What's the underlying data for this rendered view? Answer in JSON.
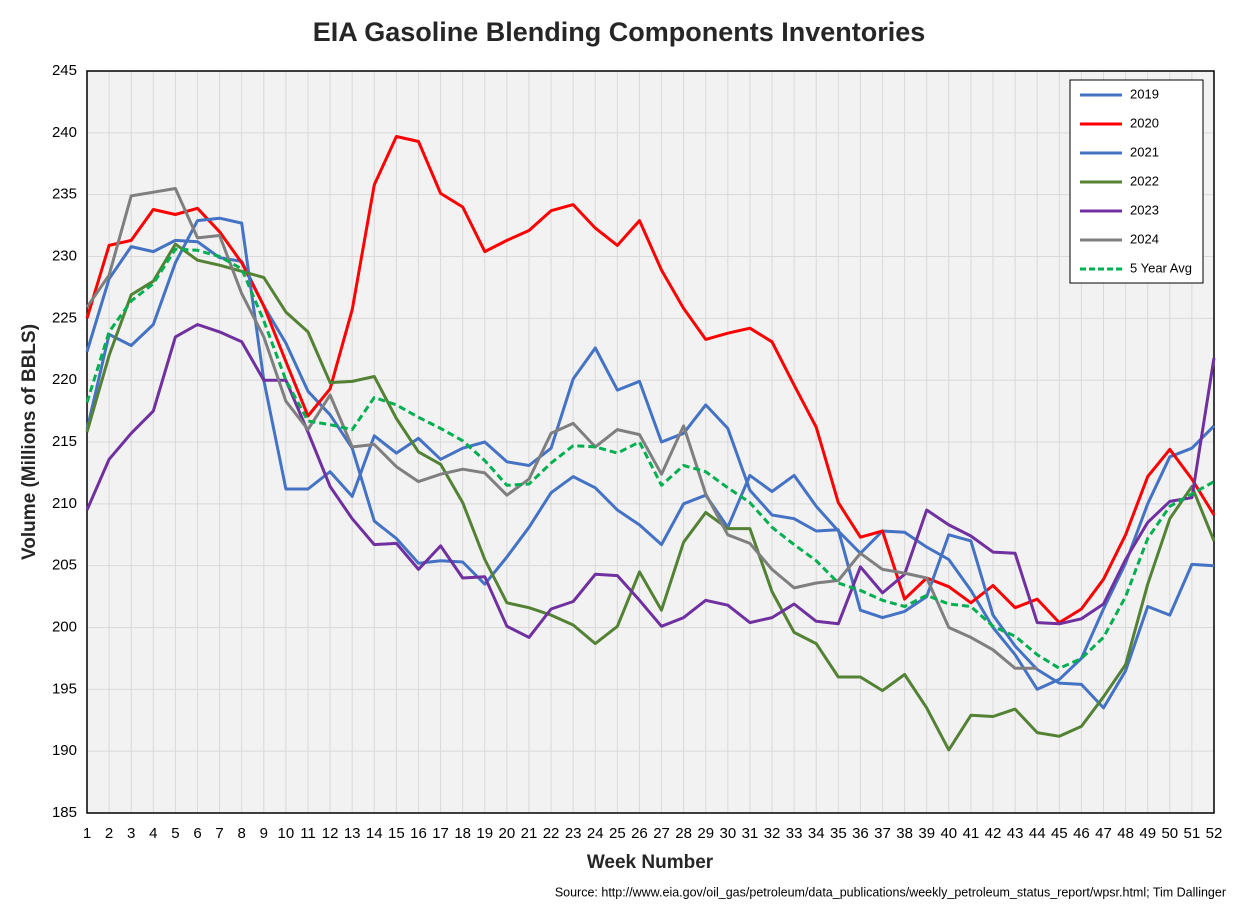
{
  "chart_data": {
    "type": "line",
    "title": "EIA Gasoline Blending Components Inventories",
    "xlabel": "Week Number",
    "ylabel": "Volume (Millions of BBLS)",
    "source": "Source: http://www.eia.gov/oil_gas/petroleum/data_publications/weekly_petroleum_status_report/wpsr.html; Tim Dallinger",
    "x": [
      1,
      2,
      3,
      4,
      5,
      6,
      7,
      8,
      9,
      10,
      11,
      12,
      13,
      14,
      15,
      16,
      17,
      18,
      19,
      20,
      21,
      22,
      23,
      24,
      25,
      26,
      27,
      28,
      29,
      30,
      31,
      32,
      33,
      34,
      35,
      36,
      37,
      38,
      39,
      40,
      41,
      42,
      43,
      44,
      45,
      46,
      47,
      48,
      49,
      50,
      51,
      52
    ],
    "xlim": [
      1,
      52
    ],
    "xticks": [
      1,
      2,
      3,
      4,
      5,
      6,
      7,
      8,
      9,
      10,
      11,
      12,
      13,
      14,
      15,
      16,
      17,
      18,
      19,
      20,
      21,
      22,
      23,
      24,
      25,
      26,
      27,
      28,
      29,
      30,
      31,
      32,
      33,
      34,
      35,
      36,
      37,
      38,
      39,
      40,
      41,
      42,
      43,
      44,
      45,
      46,
      47,
      48,
      49,
      50,
      51,
      52
    ],
    "ylim": [
      185,
      245
    ],
    "yticks": [
      185,
      190,
      195,
      200,
      205,
      210,
      215,
      220,
      225,
      230,
      235,
      240,
      245
    ],
    "grid": true,
    "legend": "upper right",
    "series": [
      {
        "name": "2019",
        "color": "#4472c4",
        "values": [
          222.3,
          228.2,
          230.8,
          230.4,
          231.3,
          231.2,
          229.9,
          229.6,
          226.0,
          223.0,
          219.1,
          217.2,
          214.5,
          208.6,
          207.2,
          205.2,
          205.4,
          205.3,
          203.5,
          205.7,
          208.1,
          210.9,
          212.2,
          211.3,
          209.5,
          208.3,
          206.7,
          210.0,
          210.7,
          208.1,
          212.3,
          211.0,
          212.3,
          209.8,
          207.8,
          206.0,
          207.8,
          207.7,
          206.5,
          205.5,
          203.0,
          200.0,
          197.8,
          195.0,
          195.8,
          197.5,
          201.5,
          205.2,
          210.0,
          213.8,
          214.5,
          216.3
        ]
      },
      {
        "name": "2020",
        "color": "#ff0000",
        "values": [
          225.0,
          230.9,
          231.3,
          233.8,
          233.4,
          233.9,
          232.0,
          229.5,
          226.0,
          221.5,
          217.1,
          219.3,
          225.7,
          235.8,
          239.7,
          239.3,
          235.1,
          234.0,
          230.4,
          231.3,
          232.1,
          233.7,
          234.2,
          232.3,
          230.9,
          232.9,
          228.9,
          225.8,
          223.3,
          223.8,
          224.2,
          223.1,
          219.6,
          216.2,
          210.1,
          207.3,
          207.8,
          202.3,
          204.0,
          203.3,
          202.0,
          203.4,
          201.6,
          202.3,
          200.4,
          201.5,
          203.9,
          207.5,
          212.2,
          214.4,
          212.0,
          209.1
        ]
      },
      {
        "name": "2021",
        "color": "#4472c4",
        "values": [
          216.0,
          223.7,
          222.8,
          224.5,
          229.5,
          232.9,
          233.1,
          232.7,
          220.0,
          211.2,
          211.2,
          212.6,
          210.6,
          215.5,
          214.1,
          215.3,
          213.6,
          214.5,
          215.0,
          213.4,
          213.1,
          214.5,
          220.1,
          222.6,
          219.2,
          219.9,
          215.0,
          215.7,
          218.0,
          216.1,
          211.1,
          209.1,
          208.8,
          207.8,
          207.9,
          201.4,
          200.8,
          201.3,
          202.5,
          207.5,
          207.0,
          201.0,
          198.5,
          196.6,
          195.5,
          195.4,
          193.5,
          196.5,
          201.7,
          201.0,
          205.1,
          205.0
        ]
      },
      {
        "name": "2022",
        "color": "#548235",
        "values": [
          215.8,
          222.0,
          226.9,
          228.0,
          231.0,
          229.7,
          229.3,
          228.8,
          228.3,
          225.5,
          223.9,
          219.8,
          219.9,
          220.3,
          216.9,
          214.2,
          213.2,
          210.1,
          205.5,
          202.0,
          201.6,
          201.0,
          200.2,
          198.7,
          200.1,
          204.5,
          201.4,
          206.9,
          209.3,
          208.0,
          208.0,
          202.9,
          199.6,
          198.7,
          196.0,
          196.0,
          194.9,
          196.2,
          193.5,
          190.1,
          192.9,
          192.8,
          193.4,
          191.5,
          191.2,
          192.0,
          194.4,
          197.0,
          203.5,
          208.8,
          211.4,
          207.0
        ]
      },
      {
        "name": "2023",
        "color": "#7030a0",
        "values": [
          209.5,
          213.6,
          215.7,
          217.5,
          223.5,
          224.5,
          223.9,
          223.1,
          220.0,
          220.0,
          215.8,
          211.4,
          208.8,
          206.7,
          206.8,
          204.7,
          206.6,
          204.0,
          204.1,
          200.1,
          199.2,
          201.5,
          202.1,
          204.3,
          204.2,
          202.2,
          200.1,
          200.8,
          202.2,
          201.8,
          200.4,
          200.8,
          201.9,
          200.5,
          200.3,
          204.9,
          202.8,
          204.3,
          209.5,
          208.3,
          207.4,
          206.1,
          206.0,
          200.4,
          200.3,
          200.7,
          201.9,
          205.5,
          208.5,
          210.2,
          210.5,
          221.8
        ]
      },
      {
        "name": "2024",
        "color": "#7f7f7f",
        "values": [
          225.9,
          228.5,
          234.9,
          235.2,
          235.5,
          231.5,
          231.7,
          227.0,
          223.5,
          218.3,
          216.0,
          218.8,
          214.6,
          214.8,
          213.0,
          211.8,
          212.4,
          212.8,
          212.5,
          210.7,
          212.0,
          215.7,
          216.5,
          214.6,
          216.0,
          215.6,
          212.4,
          216.3,
          210.8,
          207.5,
          206.8,
          204.7,
          203.2,
          203.6,
          203.8,
          206.0,
          204.7,
          204.4,
          204.0,
          200.0,
          199.2,
          198.2,
          196.7,
          196.7,
          null,
          null,
          null,
          null,
          null,
          null,
          null,
          null
        ]
      },
      {
        "name": "5 Year Avg",
        "color": "#00b050",
        "dash": true,
        "values": [
          218.2,
          223.9,
          226.4,
          227.8,
          230.6,
          230.5,
          230.0,
          229.0,
          224.8,
          220.0,
          216.7,
          216.4,
          216.0,
          218.6,
          218.0,
          217.0,
          216.1,
          215.1,
          213.5,
          211.5,
          211.6,
          213.3,
          214.7,
          214.6,
          214.1,
          215.0,
          211.5,
          213.1,
          212.6,
          211.3,
          210.1,
          208.1,
          206.7,
          205.4,
          203.6,
          203.0,
          202.2,
          201.7,
          202.6,
          201.9,
          201.7,
          200.1,
          199.3,
          197.8,
          196.7,
          197.5,
          199.2,
          202.5,
          207.2,
          209.8,
          210.8,
          211.8
        ]
      }
    ]
  }
}
